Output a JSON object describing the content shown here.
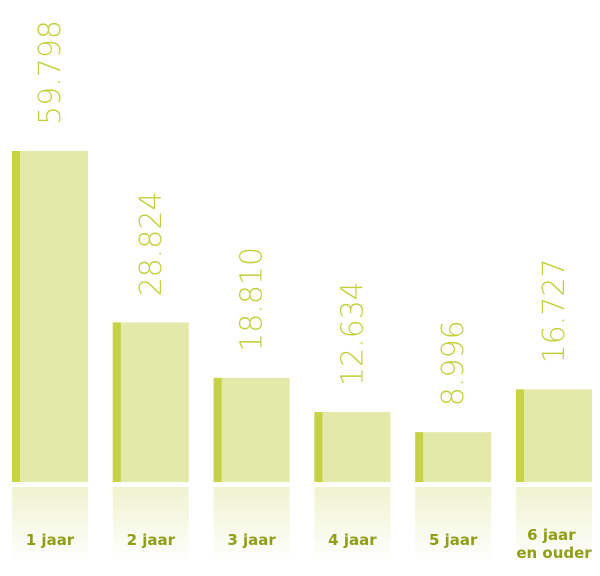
{
  "chart_data": {
    "type": "bar",
    "categories": [
      "1 jaar",
      "2 jaar",
      "3 jaar",
      "4 jaar",
      "5 jaar",
      "6 jaar en ouder"
    ],
    "values": [
      59798,
      28824,
      18810,
      12634,
      8996,
      16727
    ],
    "value_labels": [
      "59.798",
      "28.824",
      "18.810",
      "12.634",
      "8.996",
      "16.727"
    ],
    "color": "#e3e9a8",
    "accent_color": "#c5d243"
  }
}
